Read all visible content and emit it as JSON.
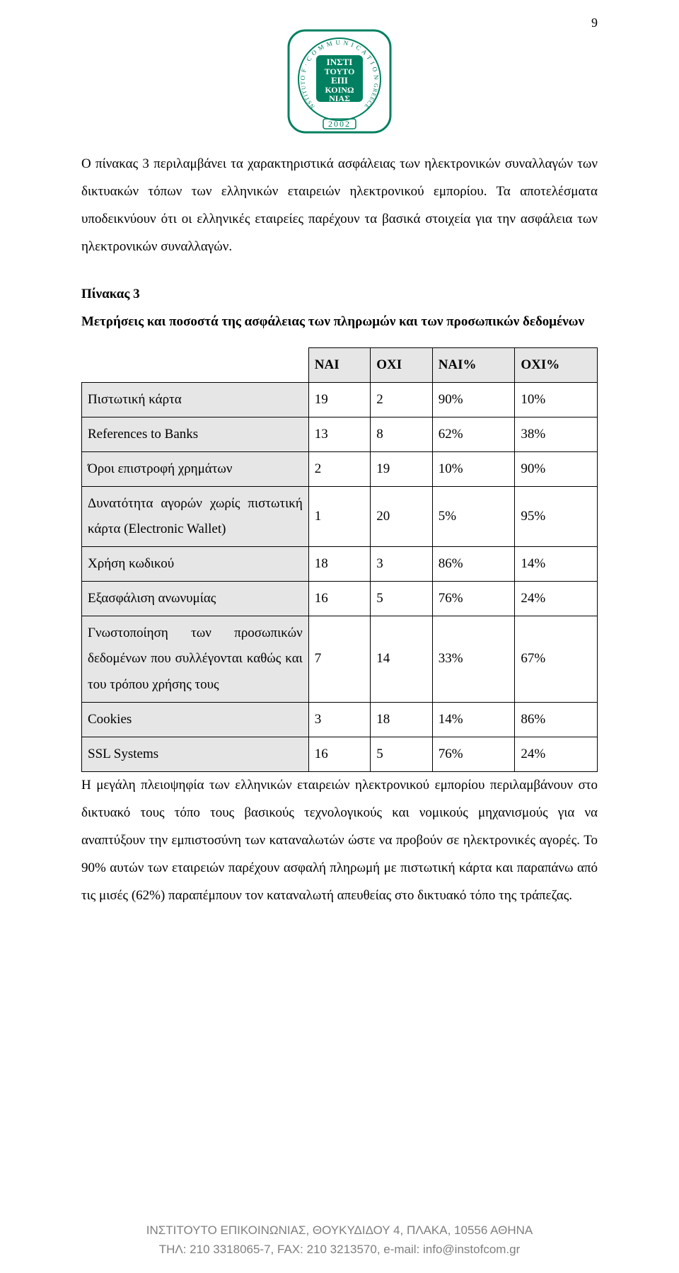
{
  "page_number": "9",
  "logo": {
    "outer_border_color": "#008060",
    "circle_text_top": "OF · COMMUNICATION",
    "circle_text_side_left": "INSTITUTE",
    "circle_text_side_right": "GREECE",
    "center_text": "ΙΝΣΤΙ\nΤΟΥΤΟ\nΕΠΙ\nΚΟΙΝΩ\nΝΙΑΣ",
    "year": "2002",
    "center_bg": "#008060",
    "center_text_color": "#ffffff",
    "ring_text_color": "#008060"
  },
  "intro": "Ο πίνακας 3 περιλαμβάνει τα χαρακτηριστικά ασφάλειας των ηλεκτρονικών συναλλαγών των δικτυακών τόπων των ελληνικών εταιρειών ηλεκτρονικού εμπορίου. Τα αποτελέσματα υποδεικνύουν ότι οι ελληνικές εταιρείες παρέχουν τα βασικά στοιχεία για την ασφάλεια των ηλεκτρονικών συναλλαγών.",
  "table_heading_line1": "Πίνακας 3",
  "table_heading_line2": "Μετρήσεις και ποσοστά της ασφάλειας των πληρωμών και των προσωπικών δεδομένων",
  "table": {
    "columns": [
      "",
      "ΝΑΙ",
      "ΟΧΙ",
      "ΝΑΙ%",
      "ΟΧΙ%"
    ],
    "col_widths": [
      "44%",
      "12%",
      "12%",
      "16%",
      "16%"
    ],
    "header_bg": "#e6e6e6",
    "rowlabel_bg": "#e6e6e6",
    "cell_bg": "#ffffff",
    "border_color": "#000000",
    "rows": [
      {
        "label": "Πιστωτική κάρτα",
        "c1": "19",
        "c2": "2",
        "c3": "90%",
        "c4": "10%"
      },
      {
        "label": "References to Banks",
        "c1": "13",
        "c2": "8",
        "c3": "62%",
        "c4": "38%"
      },
      {
        "label": "Όροι επιστροφή χρημάτων",
        "c1": "2",
        "c2": "19",
        "c3": "10%",
        "c4": "90%"
      },
      {
        "label": "Δυνατότητα αγορών χωρίς πιστωτική κάρτα (Electronic Wallet)",
        "c1": "1",
        "c2": "20",
        "c3": "5%",
        "c4": "95%"
      },
      {
        "label": "Χρήση κωδικού",
        "c1": "18",
        "c2": "3",
        "c3": "86%",
        "c4": "14%"
      },
      {
        "label": "Εξασφάλιση ανωνυμίας",
        "c1": "16",
        "c2": "5",
        "c3": "76%",
        "c4": "24%"
      },
      {
        "label": "Γνωστοποίηση των προσωπικών δεδομένων που συλλέγονται καθώς και του τρόπου χρήσης τους",
        "c1": "7",
        "c2": "14",
        "c3": "33%",
        "c4": "67%"
      },
      {
        "label": "Cookies",
        "c1": "3",
        "c2": "18",
        "c3": "14%",
        "c4": "86%"
      },
      {
        "label": "SSL Systems",
        "c1": "16",
        "c2": "5",
        "c3": "76%",
        "c4": "24%"
      }
    ]
  },
  "outro": "Η μεγάλη πλειοψηφία των ελληνικών εταιρειών ηλεκτρονικού εμπορίου περιλαμβάνουν στο δικτυακό τους τόπο τους βασικούς τεχνολογικούς και νομικούς μηχανισμούς για να αναπτύξουν την εμπιστοσύνη των καταναλωτών ώστε να προβούν σε ηλεκτρονικές αγορές. Το 90% αυτών των εταιρειών παρέχουν ασφαλή πληρωμή με πιστωτική κάρτα και παραπάνω από τις μισές (62%) παραπέμπουν τον καταναλωτή απευθείας στο δικτυακό τόπο της τράπεζας.",
  "footer_line1": "ΙΝΣΤΙΤΟΥΤΟ ΕΠΙΚΟΙΝΩΝΙΑΣ, ΘΟΥΚΥΔΙΔΟΥ 4, ΠΛΑΚΑ, 10556 ΑΘΗΝΑ",
  "footer_line2": "ΤΗΛ: 210 3318065-7, FAX: 210 3213570, e-mail: info@instofcom.gr"
}
